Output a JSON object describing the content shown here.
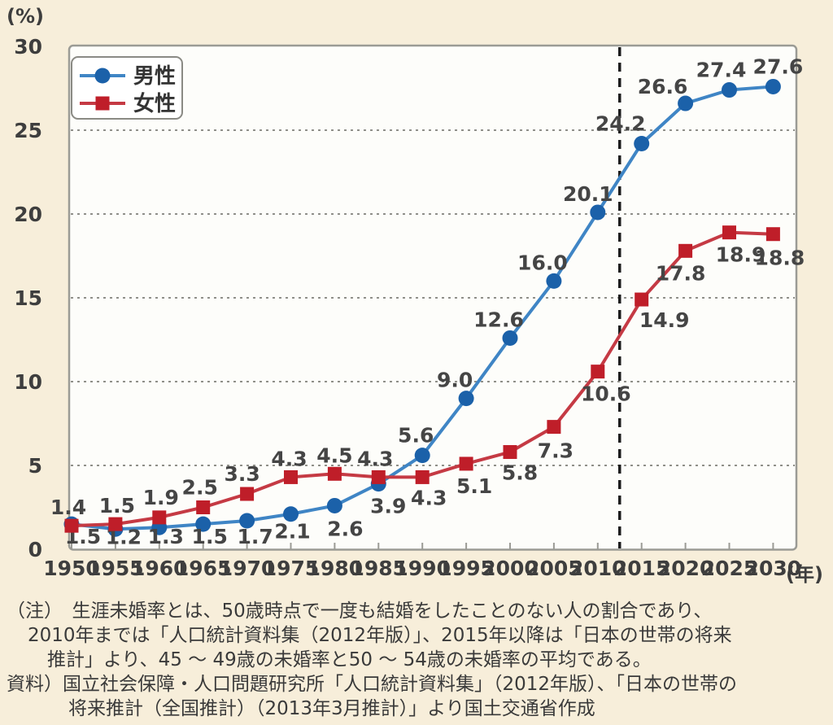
{
  "page": {
    "background_color": "#f7eeda",
    "plot_background": "#fdfdfa",
    "plot_border_color": "#9b9b95",
    "gridline_color": "#8f8f89",
    "divider_color": "#1c1c1c"
  },
  "chart_data": {
    "type": "line",
    "title": "",
    "y_label": "(%)",
    "x_label": "(年)",
    "categories": [
      1950,
      1955,
      1960,
      1965,
      1970,
      1975,
      1980,
      1985,
      1990,
      1995,
      2000,
      2005,
      2010,
      2015,
      2020,
      2025,
      2030
    ],
    "ylim": [
      0,
      30
    ],
    "yticks": [
      0,
      5,
      10,
      15,
      20,
      25,
      30
    ],
    "grid": "horizontal-dotted",
    "legend_position": "top-left",
    "projection_divider_year": 2012.5,
    "series": [
      {
        "name": "男性",
        "marker": "circle",
        "marker_color": "#1b61a9",
        "line_color": "#3f85c5",
        "values": [
          1.5,
          1.2,
          1.3,
          1.5,
          1.7,
          2.1,
          2.6,
          3.9,
          5.6,
          9.0,
          12.6,
          16.0,
          20.1,
          24.2,
          26.6,
          27.4,
          27.6
        ],
        "label_offsets": [
          [
            14,
            24
          ],
          [
            10,
            18
          ],
          [
            8,
            20
          ],
          [
            8,
            24
          ],
          [
            10,
            28
          ],
          [
            2,
            30
          ],
          [
            13,
            37
          ],
          [
            12,
            36
          ],
          [
            -8,
            -16
          ],
          [
            -14,
            -14
          ],
          [
            -14,
            -14
          ],
          [
            -14,
            -14
          ],
          [
            -12,
            -14
          ],
          [
            -26,
            -16
          ],
          [
            -28,
            -12
          ],
          [
            -10,
            -16
          ],
          [
            6,
            -16
          ]
        ]
      },
      {
        "name": "女性",
        "marker": "square",
        "marker_color": "#bf1e29",
        "line_color": "#c53a44",
        "values": [
          1.4,
          1.5,
          1.9,
          2.5,
          3.3,
          4.3,
          4.5,
          4.3,
          4.3,
          5.1,
          5.8,
          7.3,
          10.6,
          14.9,
          17.8,
          18.9,
          18.8
        ],
        "label_offsets": [
          [
            -4,
            -14
          ],
          [
            2,
            -14
          ],
          [
            2,
            -16
          ],
          [
            -4,
            -16
          ],
          [
            -6,
            -16
          ],
          [
            -2,
            -14
          ],
          [
            0,
            -14
          ],
          [
            -4,
            -14
          ],
          [
            8,
            34
          ],
          [
            10,
            36
          ],
          [
            12,
            34
          ],
          [
            2,
            38
          ],
          [
            10,
            36
          ],
          [
            28,
            34
          ],
          [
            -6,
            36
          ],
          [
            14,
            36
          ],
          [
            8,
            38
          ]
        ]
      }
    ]
  },
  "footnote": {
    "lines": [
      {
        "indent": 0,
        "text": "（注）　生涯未婚率とは、50歳時点で一度も結婚をしたことのない人の割合であり、"
      },
      {
        "indent": 1,
        "text": "2010年までは「人口統計資料集（2012年版）」、2015年以降は「日本の世帯の将来"
      },
      {
        "indent": 2,
        "text": "推計」より、45 ～ 49歳の未婚率と50 ～ 54歳の未婚率の平均である。"
      },
      {
        "indent": 0,
        "text": "資料）国立社会保障・人口問題研究所「人口統計資料集」（2012年版）、「日本の世帯の"
      },
      {
        "indent": 3,
        "text": "将来推計（全国推計）（2013年3月推計）」より国土交通省作成"
      }
    ]
  }
}
